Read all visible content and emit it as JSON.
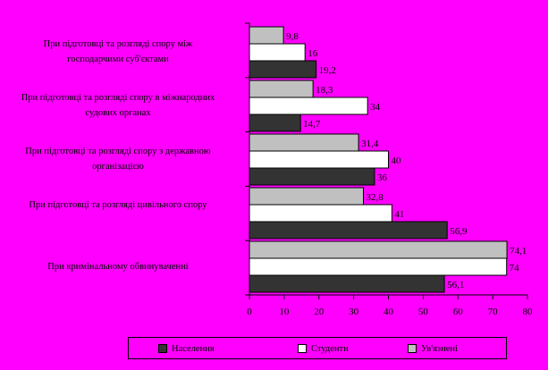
{
  "chart_data": {
    "type": "bar",
    "orientation": "horizontal",
    "categories": [
      "При підготовці та розгляді спору між господарчими суб'єктами",
      "При підготовці та розгляді спору в міжнародних судових органах",
      "При підготовці та розгляді спору з державною організацією",
      "При підготовці та розгляді цивільного спору",
      "При кримінальному обвинуваченні"
    ],
    "series": [
      {
        "name": "Населення",
        "color": "#333333",
        "values": [
          19.2,
          14.7,
          36,
          56.9,
          56.1
        ],
        "labels": [
          "19,2",
          "14,7",
          "36",
          "56,9",
          "56,1"
        ]
      },
      {
        "name": "Студенти",
        "color": "#ffffff",
        "values": [
          16,
          34,
          40,
          41,
          74
        ],
        "labels": [
          "16",
          "34",
          "40",
          "41",
          "74"
        ]
      },
      {
        "name": "Ув'язнені",
        "color": "#c0c0c0",
        "values": [
          9.8,
          18.3,
          31.4,
          32.8,
          74.1
        ],
        "labels": [
          "9,8",
          "18,3",
          "31,4",
          "32,8",
          "74,1"
        ]
      }
    ],
    "xlim": [
      0,
      80
    ],
    "xticks": [
      "0",
      "10",
      "20",
      "30",
      "40",
      "50",
      "60",
      "70",
      "80"
    ],
    "grid": false,
    "legend_position": "bottom"
  }
}
